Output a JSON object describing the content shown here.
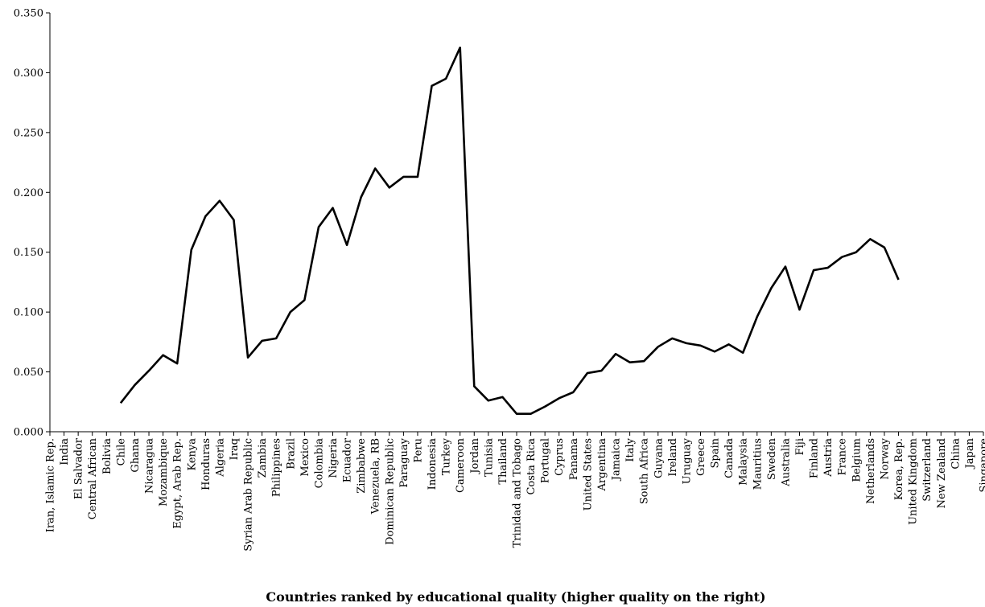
{
  "chart_data": {
    "type": "line",
    "xlabel": "Countries ranked by educational quality (higher quality on the right)",
    "ylabel": "",
    "ylim": [
      0,
      0.35
    ],
    "yticks": [
      "0.000",
      "0.050",
      "0.100",
      "0.150",
      "0.200",
      "0.250",
      "0.300",
      "0.350"
    ],
    "grid": false,
    "categories": [
      "Iran, Islamic Rep.",
      "India",
      "El Salvador",
      "Central African",
      "Bolivia",
      "Chile",
      "Ghana",
      "Nicaragua",
      "Mozambique",
      "Egypt, Arab Rep.",
      "Kenya",
      "Honduras",
      "Algeria",
      "Iraq",
      "Syrian Arab Republic",
      "Zambia",
      "Philippines",
      "Brazil",
      "Mexico",
      "Colombia",
      "Nigeria",
      "Ecuador",
      "Zimbabwe",
      "Venezuela, RB",
      "Dominican Republic",
      "Paraguay",
      "Peru",
      "Indonesia",
      "Turkey",
      "Cameroon",
      "Jordan",
      "Tunisia",
      "Thailand",
      "Trinidad and Tobago",
      "Costa Rica",
      "Portugal",
      "Cyprus",
      "Panama",
      "United States",
      "Argentina",
      "Jamaica",
      "Italy",
      "South Africa",
      "Guyana",
      "Ireland",
      "Uruguay",
      "Greece",
      "Spain",
      "Canada",
      "Malaysia",
      "Mauritius",
      "Sweden",
      "Australia",
      "Fiji",
      "Finland",
      "Austria",
      "France",
      "Belgium",
      "Netherlands",
      "Norway",
      "Korea, Rep.",
      "United Kingdom",
      "Switzerland",
      "New Zealand",
      "China",
      "Japan",
      "Singapore"
    ],
    "series": [
      {
        "values": [
          null,
          null,
          null,
          null,
          null,
          0.024,
          0.039,
          0.051,
          0.064,
          0.057,
          0.152,
          0.18,
          0.193,
          0.177,
          0.062,
          0.076,
          0.078,
          0.1,
          0.11,
          0.171,
          0.187,
          0.156,
          0.196,
          0.22,
          0.204,
          0.213,
          0.213,
          0.289,
          0.295,
          0.321,
          0.038,
          0.026,
          0.029,
          0.015,
          0.015,
          0.021,
          0.028,
          0.033,
          0.049,
          0.051,
          0.065,
          0.058,
          0.059,
          0.071,
          0.078,
          0.074,
          0.072,
          0.067,
          0.073,
          0.066,
          0.096,
          0.12,
          0.138,
          0.102,
          0.135,
          0.137,
          0.146,
          0.15,
          0.161,
          0.154,
          0.127,
          null,
          null,
          null,
          null,
          null,
          null
        ]
      }
    ]
  }
}
